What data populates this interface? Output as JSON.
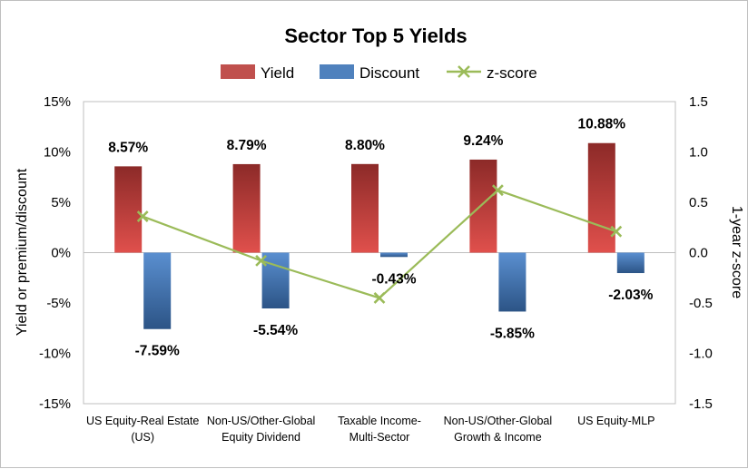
{
  "chart_data": {
    "type": "bar",
    "title": "Sector Top 5 Yields",
    "categories": [
      [
        "US Equity-Real Estate",
        "(US)"
      ],
      [
        "Non-US/Other-Global",
        "Equity Dividend"
      ],
      [
        "Taxable Income-",
        "Multi-Sector"
      ],
      [
        "Non-US/Other-Global",
        "Growth & Income"
      ],
      [
        "US Equity-MLP"
      ]
    ],
    "series": [
      {
        "name": "Yield",
        "type": "bar",
        "axis": "left",
        "color": "#c0504d",
        "values": [
          8.57,
          8.79,
          8.8,
          9.24,
          10.88
        ],
        "labels": [
          "8.57%",
          "8.79%",
          "8.80%",
          "9.24%",
          "10.88%"
        ]
      },
      {
        "name": "Discount",
        "type": "bar",
        "axis": "left",
        "color": "#4f81bd",
        "values": [
          -7.59,
          -5.54,
          -0.43,
          -5.85,
          -2.03
        ],
        "labels": [
          "-7.59%",
          "-5.54%",
          "-0.43%",
          "-5.85%",
          "-2.03%"
        ]
      },
      {
        "name": "z-score",
        "type": "line",
        "axis": "right",
        "color": "#9bbb59",
        "values": [
          0.36,
          -0.08,
          -0.45,
          0.62,
          0.21
        ]
      }
    ],
    "ylabel": "Yield or premium/discount",
    "y2label": "1-year z-score",
    "ylim": [
      -15,
      15
    ],
    "y2lim": [
      -1.5,
      1.5
    ],
    "yticks": [
      "15%",
      "10%",
      "5%",
      "0%",
      "-5%",
      "-10%",
      "-15%"
    ],
    "y2ticks": [
      "1.5",
      "1.0",
      "0.5",
      "0.0",
      "-0.5",
      "-1.0",
      "-1.5"
    ],
    "legend_position": "top",
    "grid": false
  }
}
